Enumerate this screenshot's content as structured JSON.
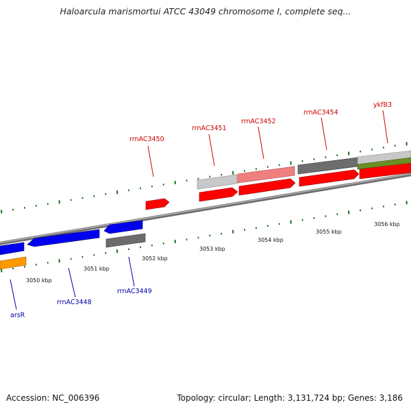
{
  "title": "Haloarcula marismortui ATCC 43049 chromosome I, complete seq...",
  "footer": {
    "accession": "Accession: NC_006396",
    "summary": "Topology: circular; Length: 3,131,724 bp; Genes: 3,186"
  },
  "ruler": {
    "ticks": [
      {
        "label": "3050 kbp"
      },
      {
        "label": "3051 kbp"
      },
      {
        "label": "3052 kbp"
      },
      {
        "label": "3053 kbp"
      },
      {
        "label": "3054 kbp"
      },
      {
        "label": "3055 kbp"
      },
      {
        "label": "3056 kbp"
      }
    ]
  },
  "genes": [
    {
      "name": "arsR",
      "strand": "minus"
    },
    {
      "name": "rrnAC3448",
      "strand": "minus"
    },
    {
      "name": "rrnAC3449",
      "strand": "minus"
    },
    {
      "name": "rrnAC3450",
      "strand": "plus"
    },
    {
      "name": "rrnAC3451",
      "strand": "plus"
    },
    {
      "name": "rrnAC3452",
      "strand": "plus"
    },
    {
      "name": "rrnAC3454",
      "strand": "plus"
    },
    {
      "name": "ykfB3",
      "strand": "plus"
    }
  ],
  "colors": {
    "plus_label": "#cc0000",
    "minus_label": "#0000aa",
    "cds_plus": "#ff0000",
    "cds_minus": "#0000ee",
    "rna_plus": "#f08080",
    "other_gray": "#808080",
    "light_gray": "#c8c8c8",
    "orange": "#ff9900",
    "olive": "#6b8e23",
    "tick": "#1a6e1a"
  }
}
